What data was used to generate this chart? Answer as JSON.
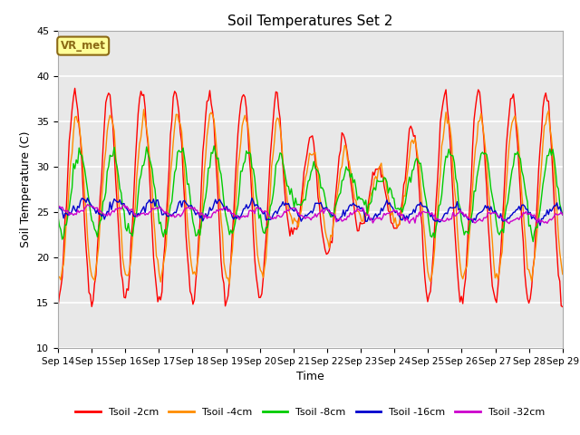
{
  "title": "Soil Temperatures Set 2",
  "xlabel": "Time",
  "ylabel": "Soil Temperature (C)",
  "ylim": [
    10,
    45
  ],
  "background_color": "#e8e8e8",
  "annotation_text": "VR_met",
  "annotation_bg": "#ffff99",
  "annotation_border": "#8b6914",
  "series_labels": [
    "Tsoil -2cm",
    "Tsoil -4cm",
    "Tsoil -8cm",
    "Tsoil -16cm",
    "Tsoil -32cm"
  ],
  "series_colors": [
    "#ff0000",
    "#ff8c00",
    "#00cc00",
    "#0000cd",
    "#cc00cc"
  ],
  "tick_labels": [
    "Sep 14",
    "Sep 15",
    "Sep 16",
    "Sep 17",
    "Sep 18",
    "Sep 19",
    "Sep 20",
    "Sep 21",
    "Sep 22",
    "Sep 23",
    "Sep 24",
    "Sep 25",
    "Sep 26",
    "Sep 27",
    "Sep 28",
    "Sep 29"
  ],
  "n_days": 15,
  "points_per_day": 24
}
